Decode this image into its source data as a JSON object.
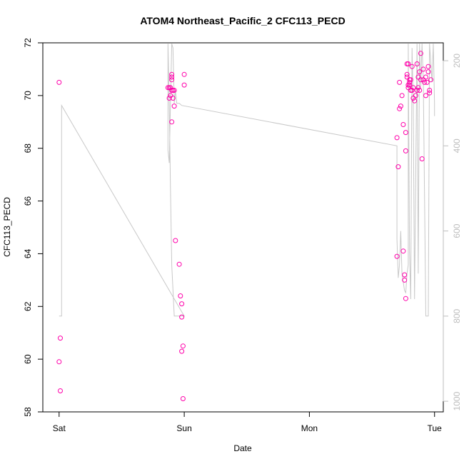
{
  "chart_data": {
    "type": "scatter",
    "title": "ATOM4 Northeast_Pacific_2 CFC113_PECD",
    "xlabel": "Date",
    "ylabel": "CFC113_PECD",
    "x_tick_labels": [
      "Sat",
      "Sun",
      "Mon",
      "Tue"
    ],
    "x_tick_days": [
      0,
      1,
      2,
      3
    ],
    "xlim_days": [
      -0.13,
      3.07
    ],
    "ylim": [
      58,
      72
    ],
    "y_ticks": [
      58,
      60,
      62,
      64,
      66,
      68,
      70,
      72
    ],
    "y_right_ticks": [
      200,
      400,
      600,
      800,
      1000
    ],
    "y_right_lim": [
      1025,
      158
    ],
    "grid": false,
    "legend": "none",
    "colors": {
      "points": "#ff00aa",
      "line": "#c8c8c8",
      "right_axis": "#bdbdbd"
    },
    "points_x_days": [
      0.0,
      0.01,
      0.0,
      0.01,
      0.87,
      0.88,
      0.88,
      0.89,
      0.89,
      0.9,
      0.9,
      0.9,
      0.9,
      0.9,
      0.91,
      0.91,
      0.92,
      0.92,
      0.93,
      0.96,
      0.97,
      0.98,
      0.98,
      0.98,
      0.99,
      0.99,
      1.0,
      1.0,
      2.7,
      2.7,
      2.71,
      2.72,
      2.72,
      2.73,
      2.74,
      2.75,
      2.75,
      2.76,
      2.76,
      2.77,
      2.77,
      2.77,
      2.78,
      2.78,
      2.78,
      2.79,
      2.79,
      2.79,
      2.8,
      2.8,
      2.8,
      2.81,
      2.81,
      2.82,
      2.82,
      2.83,
      2.83,
      2.84,
      2.85,
      2.86,
      2.86,
      2.87,
      2.87,
      2.88,
      2.88,
      2.89,
      2.89,
      2.9,
      2.91,
      2.91,
      2.92,
      2.93,
      2.93,
      2.94,
      2.95,
      2.95,
      2.96,
      2.96,
      2.97
    ],
    "points_y": [
      70.5,
      60.8,
      59.9,
      58.8,
      70.3,
      70.3,
      69.9,
      70.0,
      70.3,
      70.2,
      69.0,
      70.6,
      70.8,
      70.7,
      70.2,
      69.9,
      70.2,
      69.6,
      64.5,
      63.6,
      62.4,
      62.1,
      61.6,
      60.3,
      60.5,
      58.5,
      70.8,
      70.4,
      68.4,
      63.9,
      67.3,
      69.5,
      70.5,
      69.6,
      70.0,
      68.9,
      64.1,
      63.0,
      63.2,
      62.3,
      67.9,
      68.6,
      70.7,
      70.8,
      71.2,
      70.3,
      70.4,
      71.2,
      70.5,
      70.6,
      70.4,
      70.2,
      70.6,
      71.1,
      70.2,
      70.3,
      69.9,
      69.8,
      70.0,
      70.2,
      71.2,
      70.3,
      70.7,
      70.9,
      70.2,
      71.6,
      70.6,
      67.6,
      71.0,
      70.6,
      70.5,
      70.7,
      70.0,
      70.5,
      71.1,
      70.9,
      70.2,
      70.1,
      70.6
    ],
    "line_x_days": [
      0.0,
      0.02,
      0.02,
      1.0,
      0.98,
      0.92,
      0.9,
      0.89,
      0.88,
      0.87,
      0.87,
      0.88,
      0.89,
      0.9,
      0.91,
      0.92,
      0.93,
      0.94,
      0.95,
      0.96,
      0.98,
      2.7,
      2.7,
      2.71,
      2.72,
      2.73,
      2.74,
      2.76,
      2.77,
      2.78,
      2.79,
      2.79,
      2.8,
      2.81,
      2.82,
      2.83,
      2.84,
      2.86,
      2.87,
      2.88,
      2.89,
      2.9,
      2.91,
      2.93,
      2.95,
      2.96,
      2.98,
      2.99,
      3.0,
      3.0
    ],
    "line_depth": [
      800,
      800,
      305,
      800,
      800,
      800,
      680,
      500,
      300,
      160,
      410,
      440,
      300,
      160,
      170,
      300,
      270,
      300,
      300,
      300,
      305,
      400,
      620,
      710,
      680,
      600,
      700,
      740,
      745,
      700,
      680,
      160,
      650,
      760,
      170,
      300,
      760,
      160,
      700,
      160,
      260,
      160,
      250,
      800,
      800,
      160,
      250,
      160,
      300,
      330
    ]
  }
}
